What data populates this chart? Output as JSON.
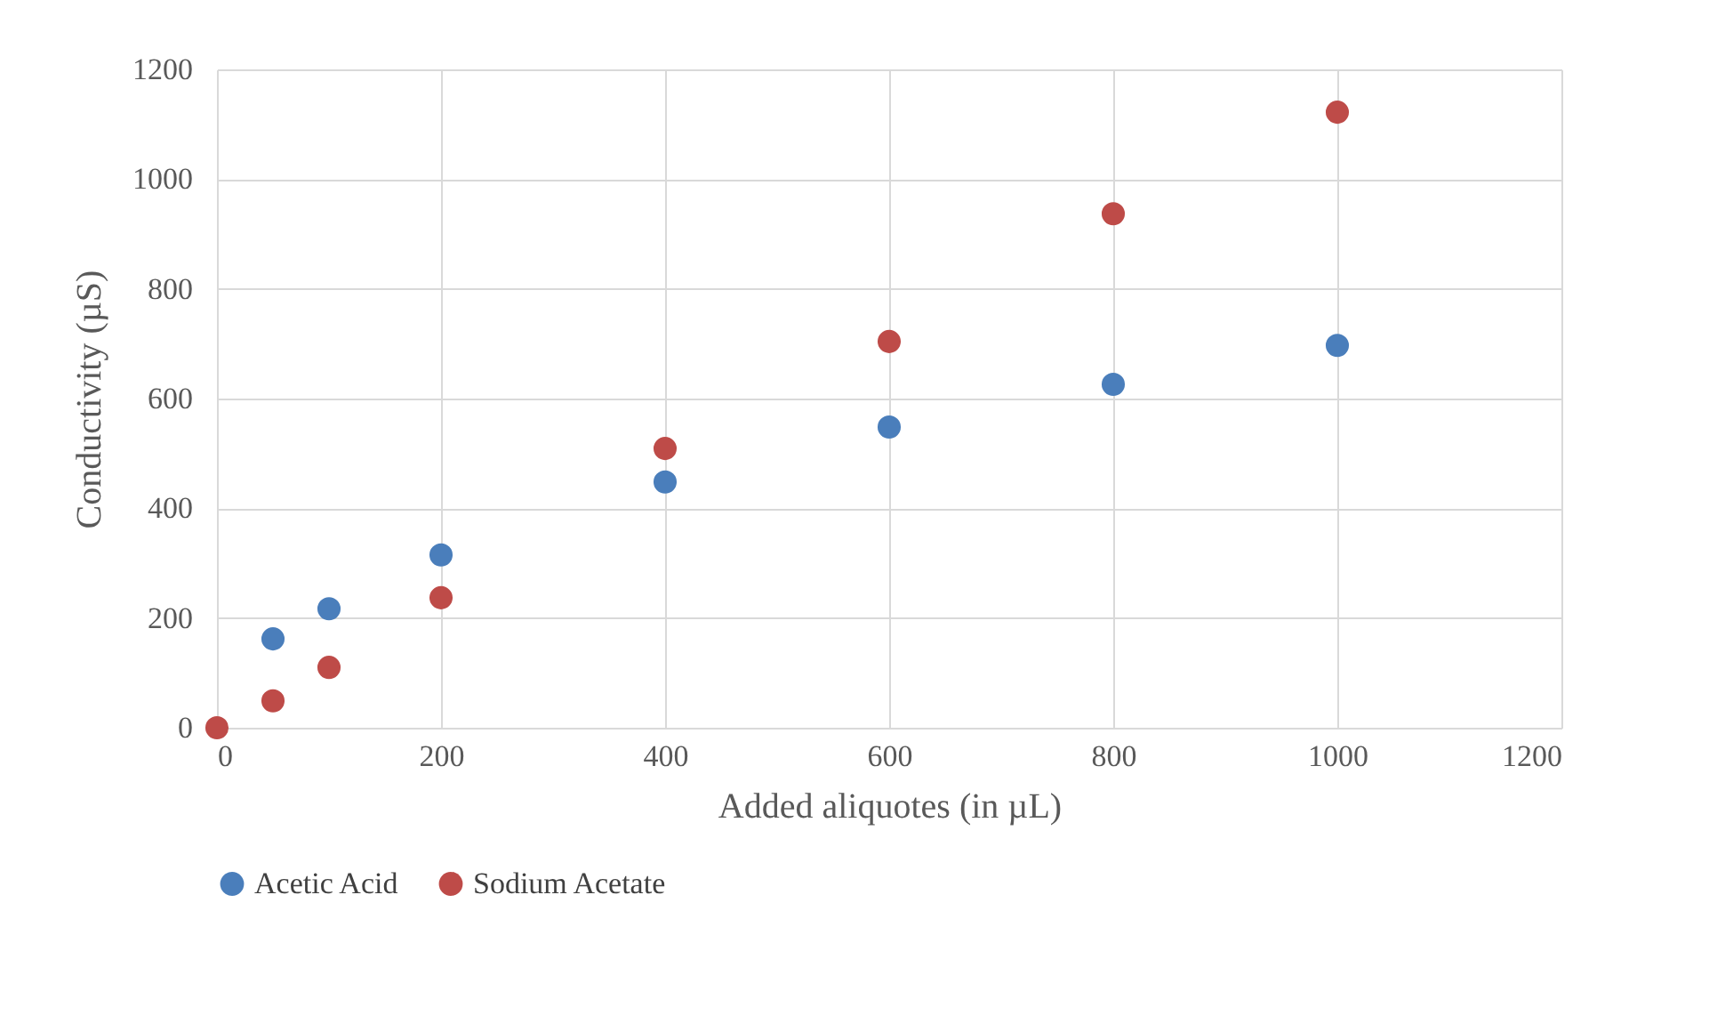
{
  "chart_data": {
    "type": "scatter",
    "xlabel": "Added aliquotes  (in µL)",
    "ylabel": "Conductivity (µS)",
    "xlim": [
      0,
      1200
    ],
    "xticks": [
      0,
      200,
      400,
      600,
      800,
      1000,
      1200
    ],
    "ylim": [
      0,
      1200
    ],
    "yticks": [
      0,
      200,
      400,
      600,
      800,
      1000,
      1200
    ],
    "grid": true,
    "legend": "bottom",
    "marker": "circle",
    "series": [
      {
        "name": "Acetic Acid",
        "color": "#4a7ebb",
        "x": [
          50,
          100,
          200,
          400,
          600,
          800,
          1000
        ],
        "values": [
          162,
          217,
          315,
          448,
          548,
          626,
          697
        ]
      },
      {
        "name": "Sodium Acetate",
        "color": "#be4b48",
        "x": [
          0,
          50,
          100,
          200,
          400,
          600,
          800,
          1000
        ],
        "values": [
          0,
          49,
          110,
          237,
          509,
          704,
          937,
          1122
        ]
      }
    ]
  }
}
